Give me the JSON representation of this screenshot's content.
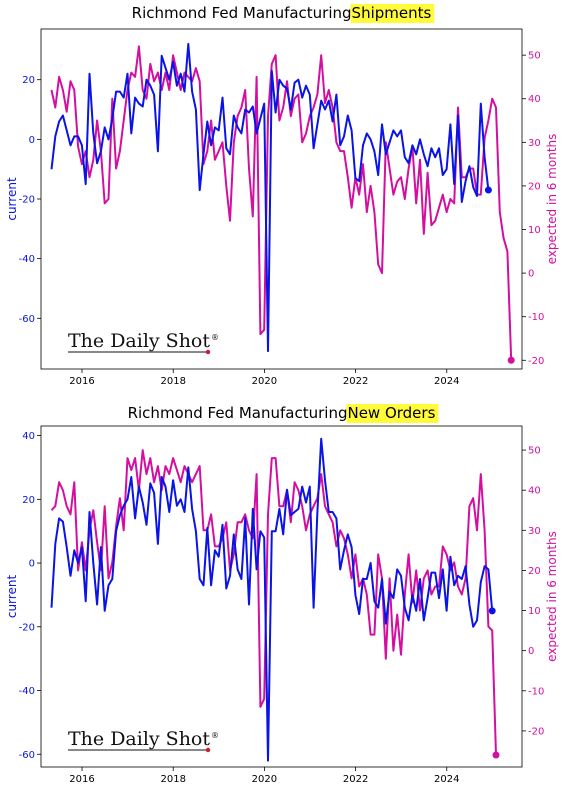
{
  "colors": {
    "current": "#0a14e6",
    "expected": "#d40fa0",
    "highlight": "#fffb3a",
    "logo_dot": "#d01a2a"
  },
  "watermark": {
    "text": "The Daily Shot",
    "mark": "®"
  },
  "chart_data": [
    {
      "type": "line",
      "title_prefix": "Richmond Fed Manufacturing ",
      "title_highlight": "Shipments",
      "ylabel_left": "current",
      "ylabel_right": "expected in 6 months",
      "xlim": [
        2015.1,
        2025.65
      ],
      "ylim_left": [
        -77,
        37
      ],
      "ylim_right": [
        -22,
        56
      ],
      "x_ticks": [
        2016,
        2018,
        2020,
        2022,
        2024
      ],
      "y_ticks_left": [
        -60,
        -40,
        -20,
        0,
        20
      ],
      "y_ticks_right": [
        -20,
        -10,
        0,
        10,
        20,
        30,
        40,
        50
      ],
      "grid": false,
      "x_start": 2015.33,
      "x_step": 0.08333,
      "series": [
        {
          "name": "current",
          "axis": "left",
          "values": [
            -10,
            1,
            6,
            8,
            3,
            -2,
            1,
            1,
            -2,
            -15,
            22,
            2,
            -8,
            -4,
            4,
            0,
            7,
            16,
            16,
            14,
            22,
            2,
            14,
            12,
            11,
            20,
            18,
            15,
            -4,
            28,
            24,
            20,
            26,
            18,
            22,
            16,
            32,
            16,
            10,
            -17,
            -5,
            6,
            -2,
            4,
            3,
            14,
            -3,
            -5,
            8,
            4,
            2,
            10,
            9,
            11,
            2,
            7,
            12,
            -71,
            23,
            9,
            20,
            18,
            17,
            10,
            19,
            20,
            14,
            18,
            15,
            -3,
            5,
            13,
            10,
            13,
            6,
            15,
            -2,
            1,
            8,
            3,
            -13,
            -14,
            -2,
            2,
            0,
            -4,
            -12,
            5,
            -5,
            -1,
            3,
            1,
            3,
            -6,
            -8,
            -2,
            -5,
            0,
            -5,
            -9,
            -3,
            -6,
            -3,
            -12,
            -10,
            5,
            -15,
            8,
            -21,
            -14,
            -9,
            -16,
            -19,
            12,
            -6,
            -17
          ],
          "end_marker": true
        },
        {
          "name": "expected",
          "axis": "right",
          "values": [
            42,
            38,
            45,
            42,
            37,
            44,
            42,
            29,
            25,
            28,
            22,
            26,
            35,
            28,
            16,
            17,
            40,
            24,
            28,
            35,
            42,
            46,
            45,
            52,
            42,
            40,
            48,
            44,
            46,
            42,
            46,
            42,
            50,
            46,
            42,
            46,
            45,
            44,
            47,
            44,
            25,
            28,
            35,
            26,
            28,
            30,
            20,
            12,
            30,
            36,
            38,
            42,
            24,
            13,
            45,
            -14,
            -13,
            36,
            48,
            50,
            35,
            38,
            44,
            36,
            40,
            41,
            30,
            32,
            36,
            38,
            41,
            50,
            39,
            42,
            38,
            30,
            28,
            28,
            22,
            15,
            22,
            18,
            25,
            14,
            20,
            14,
            2,
            0,
            30,
            24,
            18,
            21,
            22,
            17,
            24,
            29,
            16,
            26,
            9,
            23,
            11,
            12,
            15,
            18,
            14,
            17,
            16,
            38,
            22,
            22,
            24,
            24,
            18,
            18,
            31,
            35,
            40,
            38,
            14,
            8,
            5,
            -20
          ],
          "end_marker": true
        }
      ]
    },
    {
      "type": "line",
      "title_prefix": "Richmond Fed Manufacturing ",
      "title_highlight": "New Orders",
      "ylabel_left": "current",
      "ylabel_right": "expected in 6 months",
      "xlim": [
        2015.1,
        2025.65
      ],
      "ylim_left": [
        -64,
        43
      ],
      "ylim_right": [
        -29,
        56
      ],
      "x_ticks": [
        2016,
        2018,
        2020,
        2022,
        2024
      ],
      "y_ticks_left": [
        -60,
        -40,
        -20,
        0,
        20,
        40
      ],
      "y_ticks_right": [
        -20,
        -10,
        0,
        10,
        20,
        30,
        40,
        50
      ],
      "grid": false,
      "x_start": 2015.33,
      "x_step": 0.08333,
      "series": [
        {
          "name": "current",
          "axis": "left",
          "values": [
            -14,
            6,
            14,
            13,
            5,
            -4,
            4,
            0,
            5,
            -12,
            16,
            0,
            -13,
            5,
            -15,
            -7,
            -5,
            10,
            15,
            18,
            20,
            27,
            14,
            24,
            19,
            12,
            25,
            22,
            6,
            27,
            24,
            16,
            26,
            18,
            20,
            16,
            30,
            17,
            10,
            -5,
            -7,
            11,
            -7,
            4,
            2,
            12,
            -8,
            -4,
            9,
            -2,
            -5,
            14,
            -13,
            17,
            -2,
            10,
            8,
            -62,
            10,
            10,
            17,
            9,
            23,
            15,
            16,
            17,
            24,
            19,
            24,
            -14,
            16,
            39,
            26,
            16,
            16,
            14,
            -2,
            4,
            9,
            5,
            -10,
            -16,
            -5,
            -5,
            0,
            -12,
            -14,
            -5,
            -19,
            -9,
            -11,
            -2,
            -4,
            -14,
            -18,
            -10,
            -15,
            -5,
            -18,
            -11,
            -3,
            -3,
            -11,
            -2,
            -15,
            2,
            -7,
            -4,
            -5,
            -1,
            -13,
            -20,
            -18,
            -6,
            -1,
            -2,
            -15
          ],
          "end_marker": true
        },
        {
          "name": "expected",
          "axis": "right",
          "values": [
            35,
            36,
            42,
            40,
            36,
            34,
            42,
            20,
            27,
            20,
            30,
            35,
            27,
            20,
            36,
            18,
            22,
            31,
            38,
            30,
            48,
            45,
            48,
            40,
            50,
            44,
            48,
            42,
            46,
            40,
            46,
            44,
            48,
            45,
            42,
            46,
            44,
            42,
            44,
            46,
            30,
            30,
            34,
            26,
            26,
            28,
            32,
            20,
            24,
            32,
            32,
            34,
            30,
            28,
            44,
            -14,
            -12,
            34,
            48,
            48,
            36,
            36,
            40,
            32,
            42,
            40,
            36,
            30,
            34,
            36,
            38,
            44,
            36,
            34,
            32,
            26,
            30,
            28,
            24,
            18,
            24,
            16,
            18,
            14,
            4,
            4,
            24,
            18,
            -2,
            18,
            0,
            9,
            -1,
            14,
            24,
            12,
            20,
            10,
            18,
            20,
            14,
            16,
            16,
            26,
            24,
            20,
            22,
            16,
            14,
            18,
            36,
            38,
            30,
            44,
            30,
            6,
            5,
            -26
          ],
          "end_marker": true
        }
      ]
    }
  ]
}
